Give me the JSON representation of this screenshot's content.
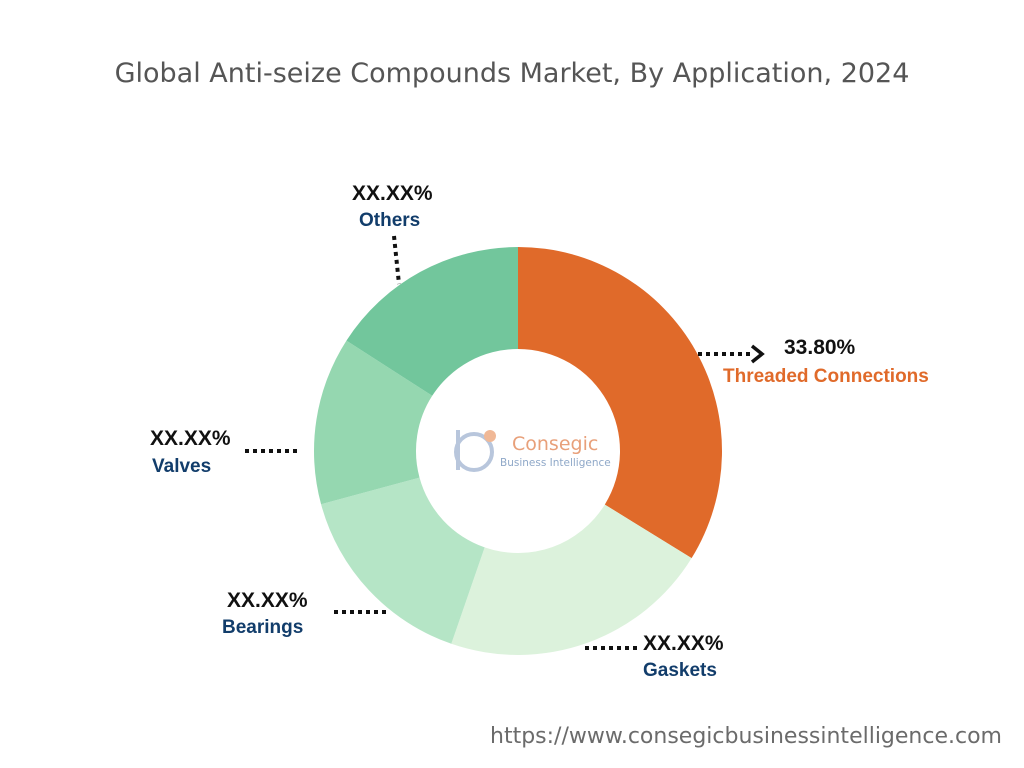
{
  "title": "Global Anti-seize Compounds Market, By Application, 2024",
  "footer_url": "https://www.consegicbusinessintelligence.com",
  "logo": {
    "name": "Consegic",
    "tagline": "Business Intelligence"
  },
  "colors": {
    "accent_orange": "#e06a2a",
    "label_blue": "#123d6b",
    "label_orange": "#e06a2a"
  },
  "chart_data": {
    "type": "pie",
    "donut": true,
    "title": "Global Anti-seize Compounds Market, By Application, 2024",
    "slices": [
      {
        "name": "Threaded Connections",
        "value": 33.8,
        "label": "33.80%",
        "color": "#e06a2a"
      },
      {
        "name": "Gaskets",
        "value": 21.5,
        "label": "XX.XX%",
        "color": "#dcf2dc"
      },
      {
        "name": "Bearings",
        "value": 15.5,
        "label": "XX.XX%",
        "color": "#b5e5c6"
      },
      {
        "name": "Valves",
        "value": 13.3,
        "label": "XX.XX%",
        "color": "#95d7b0"
      },
      {
        "name": "Others",
        "value": 15.9,
        "label": "XX.XX%",
        "color": "#72c69c"
      }
    ]
  }
}
